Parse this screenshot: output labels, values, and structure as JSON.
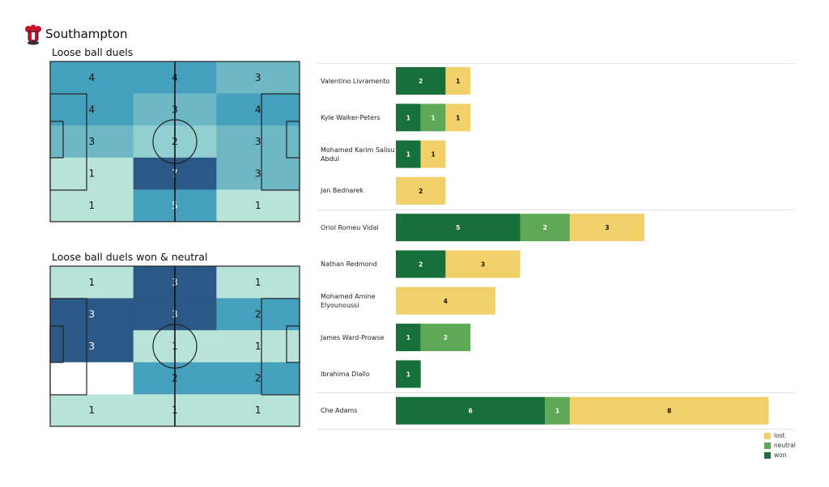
{
  "team": "Southampton",
  "colors": {
    "won": "#17703a",
    "neutral": "#5fa956",
    "lost": "#f1d06a"
  },
  "chart_data": [
    {
      "type": "heatmap",
      "title": "Loose ball duels",
      "rows": [
        [
          4,
          4,
          3
        ],
        [
          4,
          3,
          4
        ],
        [
          3,
          2,
          3
        ],
        [
          1,
          7,
          3
        ],
        [
          1,
          5,
          1
        ]
      ]
    },
    {
      "type": "heatmap",
      "title": "Loose ball duels won & neutral",
      "rows": [
        [
          1,
          3,
          1
        ],
        [
          3,
          3,
          2
        ],
        [
          3,
          1,
          1
        ],
        [
          null,
          2,
          2
        ],
        [
          1,
          1,
          1
        ]
      ]
    },
    {
      "type": "bar",
      "stacked": true,
      "orientation": "horizontal",
      "legend": [
        "lost",
        "neutral",
        "won"
      ],
      "legend_position": "bottom-right",
      "categories": [
        "Valentino Livramento",
        "Kyle Walker-Peters",
        "Mohamed Karim Salisu Abdul",
        "Jan Bednarek",
        "Oriol Romeu Vidal",
        "Nathan Redmond",
        "Mohamed Amine Elyounoussi",
        "James  Ward-Prowse",
        "Ibrahima Diallo",
        "Che Adams"
      ],
      "series": [
        {
          "name": "won",
          "values": [
            2,
            1,
            1,
            0,
            5,
            2,
            0,
            1,
            1,
            6
          ]
        },
        {
          "name": "neutral",
          "values": [
            0,
            1,
            0,
            0,
            2,
            0,
            0,
            2,
            0,
            1
          ]
        },
        {
          "name": "lost",
          "values": [
            1,
            1,
            1,
            2,
            3,
            3,
            4,
            0,
            0,
            8
          ]
        }
      ]
    }
  ]
}
